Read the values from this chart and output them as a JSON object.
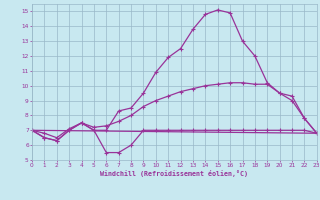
{
  "background_color": "#c8e8f0",
  "grid_color": "#9ab8c8",
  "line_color": "#993399",
  "xlabel": "Windchill (Refroidissement éolien,°C)",
  "xlim": [
    0,
    23
  ],
  "ylim": [
    5,
    15.5
  ],
  "xticks": [
    0,
    1,
    2,
    3,
    4,
    5,
    6,
    7,
    8,
    9,
    10,
    11,
    12,
    13,
    14,
    15,
    16,
    17,
    18,
    19,
    20,
    21,
    22,
    23
  ],
  "yticks": [
    5,
    6,
    7,
    8,
    9,
    10,
    11,
    12,
    13,
    14,
    15
  ],
  "line1_y": [
    7.0,
    6.5,
    6.3,
    7.0,
    7.5,
    7.0,
    7.0,
    8.3,
    8.5,
    9.5,
    10.9,
    11.9,
    12.5,
    13.8,
    14.8,
    15.1,
    14.9,
    13.0,
    12.0,
    10.2,
    9.5,
    9.0,
    7.8,
    6.8
  ],
  "line2_y": [
    7.0,
    6.5,
    6.3,
    7.0,
    7.5,
    7.0,
    5.5,
    5.5,
    6.0,
    7.0,
    7.0,
    7.0,
    7.0,
    7.0,
    7.0,
    7.0,
    7.0,
    7.0,
    7.0,
    7.0,
    7.0,
    7.0,
    7.0,
    6.8
  ],
  "line3_x": [
    0,
    23
  ],
  "line3_y": [
    7.0,
    6.8
  ],
  "line4_y": [
    7.0,
    6.8,
    6.5,
    7.1,
    7.5,
    7.2,
    7.3,
    7.6,
    8.0,
    8.6,
    9.0,
    9.3,
    9.6,
    9.8,
    10.0,
    10.1,
    10.2,
    10.2,
    10.1,
    10.1,
    9.5,
    9.3,
    7.8,
    6.8
  ]
}
